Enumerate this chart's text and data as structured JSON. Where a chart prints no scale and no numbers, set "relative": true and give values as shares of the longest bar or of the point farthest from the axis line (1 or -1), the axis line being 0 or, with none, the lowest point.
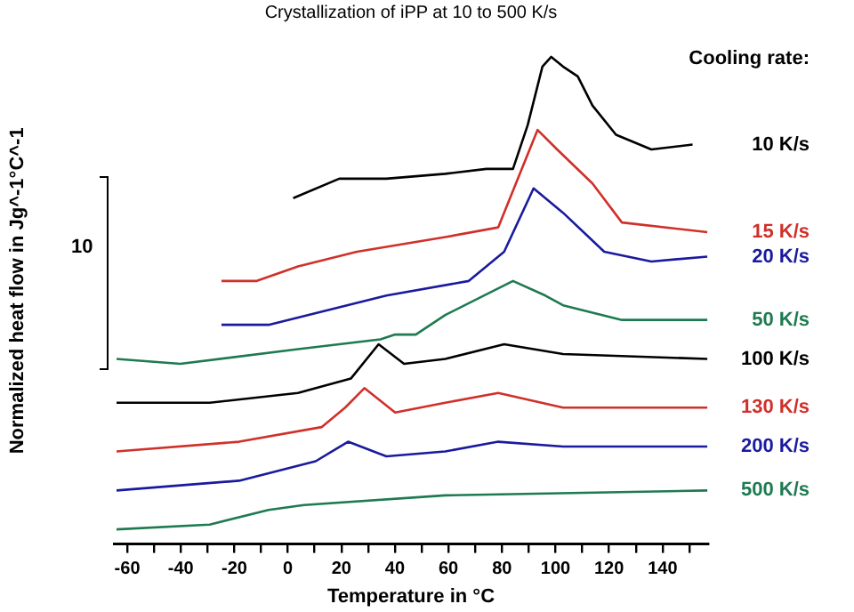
{
  "chart_data": {
    "type": "line",
    "title": "Crystallization of iPP at 10 to 500 K/s",
    "xlabel": "Temperature in °C",
    "ylabel": "Normalized heat flow in Jg^-1°C^-1",
    "legend_title": "Cooling rate:",
    "annotations": [
      "10"
    ],
    "relative": true,
    "xlim": [
      -65,
      157
    ],
    "xticks": [
      -60,
      {
        "value": -50,
        "label": null
      },
      -40,
      {
        "value": -30,
        "label": null
      },
      -20,
      {
        "value": -10,
        "label": null
      },
      0,
      {
        "value": 10,
        "label": null
      },
      20,
      {
        "value": 30,
        "label": null
      },
      40,
      {
        "value": 50,
        "label": null
      },
      60,
      {
        "value": 70,
        "label": null
      },
      80,
      {
        "value": 90,
        "label": null
      },
      100,
      {
        "value": 110,
        "label": null
      },
      120,
      {
        "value": 130,
        "label": null
      },
      140,
      {
        "value": 150,
        "label": null
      }
    ],
    "grid": false,
    "legend": false,
    "marker": "none",
    "line_style": "solid",
    "series": [
      {
        "name": "10 K/s",
        "color": "#000000",
        "x": [
          2,
          19.2,
          36.8,
          58.8,
          74.2,
          84.1,
          89.6,
          95.1,
          98.4,
          102.8,
          108.3,
          113.8,
          122.6,
          135.8,
          151.2
        ],
        "values": [
          0.71,
          0.75,
          0.75,
          0.76,
          0.77,
          0.77,
          0.86,
          0.98,
          1.0,
          0.98,
          0.96,
          0.9,
          0.84,
          0.81,
          0.82
        ]
      },
      {
        "name": "15 K/s",
        "color": "#d0302a",
        "x": [
          -24.8,
          -11.6,
          3.8,
          25.8,
          58.8,
          78.6,
          85.2,
          93.3,
          100.6,
          113.8,
          124.8,
          156.7
        ],
        "values": [
          0.54,
          0.54,
          0.57,
          0.6,
          0.63,
          0.65,
          0.74,
          0.85,
          0.81,
          0.74,
          0.66,
          0.64
        ]
      },
      {
        "name": "20 K/s",
        "color": "#1a1a9e",
        "x": [
          -24.8,
          -7.2,
          14.8,
          36.8,
          67.6,
          80.8,
          91.8,
          102.8,
          118.2,
          135.8,
          156.7
        ],
        "values": [
          0.45,
          0.45,
          0.48,
          0.51,
          0.54,
          0.6,
          0.73,
          0.68,
          0.6,
          0.58,
          0.59
        ]
      },
      {
        "name": "50 K/s",
        "color": "#1e7a50",
        "x": [
          -64,
          -40.2,
          3.8,
          34.6,
          40.1,
          47.8,
          58.8,
          84.1,
          96.2,
          102.8,
          124.8,
          156.7
        ],
        "values": [
          0.38,
          0.37,
          0.4,
          0.42,
          0.43,
          0.43,
          0.47,
          0.54,
          0.51,
          0.49,
          0.46,
          0.46
        ]
      },
      {
        "name": "100 K/s",
        "color": "#000000",
        "x": [
          -64,
          -29.2,
          3.8,
          23.6,
          33.9,
          43.4,
          58.8,
          80.8,
          102.8,
          156.7
        ],
        "values": [
          0.29,
          0.29,
          0.31,
          0.34,
          0.41,
          0.37,
          0.38,
          0.41,
          0.39,
          0.38
        ]
      },
      {
        "name": "130 K/s",
        "color": "#d0302a",
        "x": [
          -64,
          -18.2,
          12.6,
          21.4,
          28.6,
          40.1,
          58.8,
          78.6,
          102.8,
          156.7
        ],
        "values": [
          0.19,
          0.21,
          0.24,
          0.28,
          0.32,
          0.27,
          0.29,
          0.31,
          0.28,
          0.28
        ]
      },
      {
        "name": "200 K/s",
        "color": "#1a1a9e",
        "x": [
          -64,
          -18.2,
          10.4,
          22.5,
          36.8,
          58.8,
          78.6,
          102.8,
          156.7
        ],
        "values": [
          0.11,
          0.13,
          0.17,
          0.21,
          0.18,
          0.19,
          0.21,
          0.2,
          0.2
        ]
      },
      {
        "name": "500 K/s",
        "color": "#1e7a50",
        "x": [
          -64,
          -29.2,
          -7.2,
          6,
          58.8,
          156.7
        ],
        "values": [
          0.03,
          0.04,
          0.07,
          0.08,
          0.1,
          0.11
        ]
      }
    ]
  }
}
